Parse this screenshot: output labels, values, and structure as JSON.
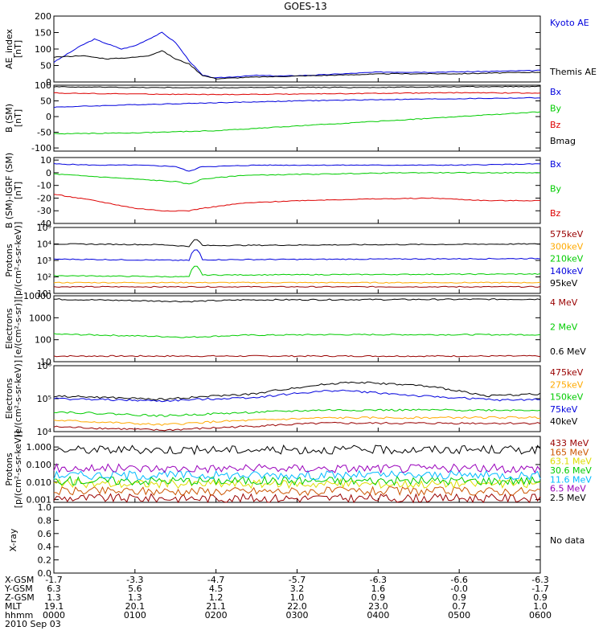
{
  "title": "GOES-13",
  "colors": {
    "black": "#000000",
    "blue": "#0000dd",
    "green": "#00cc00",
    "red": "#dd0000",
    "darkred": "#990000",
    "orange": "#ffaa00",
    "yellow": "#dddd00",
    "cyan": "#00bbff",
    "purple": "#9900bb",
    "brown": "#cc5500"
  },
  "chart_data": [
    {
      "type": "line",
      "ylabel": [
        "AE_index",
        "[nT]"
      ],
      "ylim": [
        0,
        200
      ],
      "yticks": [
        "200",
        "150",
        "100",
        "50",
        "0"
      ],
      "series": [
        {
          "name": "Kyoto AE",
          "color": "blue",
          "x": [
            0,
            10,
            20,
            30,
            40,
            50,
            60,
            70,
            80,
            90,
            100,
            110,
            120,
            130,
            150,
            170,
            200,
            240,
            280,
            320,
            360
          ],
          "y": [
            60,
            85,
            110,
            130,
            115,
            100,
            110,
            130,
            150,
            120,
            65,
            20,
            12,
            15,
            20,
            18,
            22,
            30,
            30,
            32,
            35
          ]
        },
        {
          "name": "Themis AE",
          "color": "black",
          "x": [
            0,
            20,
            40,
            60,
            70,
            80,
            90,
            100,
            110,
            120,
            150,
            200,
            250,
            300,
            360
          ],
          "y": [
            75,
            80,
            70,
            75,
            80,
            95,
            70,
            55,
            20,
            10,
            15,
            20,
            25,
            25,
            30
          ]
        }
      ]
    },
    {
      "type": "line",
      "ylabel": [
        "B (SM)",
        "[nT]"
      ],
      "ylim": [
        -110,
        100
      ],
      "yticks": [
        "100",
        "50",
        "0",
        "-50",
        "-100"
      ],
      "series": [
        {
          "name": "Bx",
          "color": "blue",
          "x": [
            0,
            60,
            120,
            180,
            240,
            300,
            360
          ],
          "y": [
            30,
            38,
            44,
            50,
            54,
            57,
            60
          ]
        },
        {
          "name": "By",
          "color": "green",
          "x": [
            0,
            60,
            120,
            180,
            240,
            300,
            360
          ],
          "y": [
            -55,
            -52,
            -45,
            -30,
            -15,
            0,
            15
          ]
        },
        {
          "name": "Bz",
          "color": "red",
          "x": [
            0,
            60,
            120,
            180,
            240,
            300,
            360
          ],
          "y": [
            75,
            72,
            70,
            72,
            74,
            76,
            75
          ]
        },
        {
          "name": "Bmag",
          "color": "black",
          "x": [
            0,
            60,
            120,
            180,
            240,
            300,
            360
          ],
          "y": [
            95,
            93,
            92,
            93,
            93,
            95,
            96
          ]
        }
      ]
    },
    {
      "type": "line",
      "ylabel": [
        "B (SM)-IGRF (SM)",
        "[nT]"
      ],
      "ylim": [
        -40,
        12
      ],
      "yticks": [
        "10",
        "0",
        "-10",
        "-20",
        "-30",
        "-40"
      ],
      "series": [
        {
          "name": "Bx",
          "color": "blue",
          "x": [
            0,
            30,
            60,
            90,
            100,
            110,
            120,
            150,
            200,
            250,
            300,
            360
          ],
          "y": [
            7,
            6,
            6,
            5,
            1,
            5,
            5,
            6,
            6,
            6,
            6,
            7
          ]
        },
        {
          "name": "By",
          "color": "green",
          "x": [
            0,
            30,
            60,
            90,
            100,
            110,
            140,
            200,
            260,
            300,
            360
          ],
          "y": [
            -1,
            -3,
            -5,
            -7,
            -9,
            -5,
            -2,
            -1,
            0,
            0,
            0
          ]
        },
        {
          "name": "Bz",
          "color": "red",
          "x": [
            0,
            30,
            60,
            80,
            100,
            110,
            140,
            180,
            220,
            280,
            320,
            360
          ],
          "y": [
            -17,
            -22,
            -28,
            -30,
            -30,
            -28,
            -24,
            -22,
            -21,
            -20,
            -22,
            -22
          ]
        }
      ]
    },
    {
      "type": "line",
      "log": true,
      "ylabel": [
        "Protons",
        "[p/(cm²-s-sr-keV)]"
      ],
      "ylim": [
        10,
        100000
      ],
      "yticks": [
        "10⁵",
        "10⁴",
        "10³",
        "10²",
        "10¹"
      ],
      "series": [
        {
          "name": "575keV",
          "color": "darkred",
          "x": [
            0,
            360
          ],
          "y": [
            25,
            25
          ]
        },
        {
          "name": "300keV",
          "color": "orange",
          "x": [
            0,
            360
          ],
          "y": [
            45,
            45
          ]
        },
        {
          "name": "210keV",
          "color": "green",
          "x": [
            0,
            100,
            105,
            110,
            360
          ],
          "y": [
            120,
            100,
            500,
            130,
            150
          ]
        },
        {
          "name": "140keV",
          "color": "blue",
          "x": [
            0,
            100,
            105,
            110,
            360
          ],
          "y": [
            1200,
            1000,
            5000,
            1100,
            1300
          ]
        },
        {
          "name": "95keV",
          "color": "black",
          "x": [
            0,
            80,
            100,
            105,
            110,
            360
          ],
          "y": [
            10000,
            9000,
            7000,
            20000,
            8000,
            10000
          ]
        }
      ]
    },
    {
      "type": "line",
      "log": true,
      "ylabel": [
        "Electrons",
        "[e/(cm²-s-sr)]"
      ],
      "ylim": [
        10,
        10000
      ],
      "yticks": [
        "10000",
        "1000",
        "100",
        "10"
      ],
      "series": [
        {
          "name": "4 MeV",
          "color": "darkred",
          "x": [
            0,
            360
          ],
          "y": [
            18,
            18
          ]
        },
        {
          "name": "2 MeV",
          "color": "green",
          "x": [
            0,
            60,
            100,
            140,
            200,
            360
          ],
          "y": [
            180,
            150,
            130,
            160,
            170,
            170
          ]
        },
        {
          "name": "0.6 MeV",
          "color": "black",
          "x": [
            0,
            60,
            100,
            140,
            360
          ],
          "y": [
            7000,
            6000,
            5500,
            6500,
            7000
          ]
        }
      ]
    },
    {
      "type": "line",
      "log": true,
      "ylabel": [
        "Electrons",
        "[e/(cm²-s-sr-keV)]"
      ],
      "ylim": [
        10000,
        1000000
      ],
      "yticks": [
        "10⁶",
        "10⁵",
        "10⁴"
      ],
      "series": [
        {
          "name": "475keV",
          "color": "darkred",
          "x": [
            0,
            80,
            120,
            200,
            360
          ],
          "y": [
            14000,
            11000,
            13000,
            18000,
            18000
          ]
        },
        {
          "name": "275keV",
          "color": "orange",
          "x": [
            0,
            80,
            120,
            200,
            360
          ],
          "y": [
            22000,
            16000,
            20000,
            26000,
            27000
          ]
        },
        {
          "name": "150keV",
          "color": "green",
          "x": [
            0,
            80,
            120,
            200,
            360
          ],
          "y": [
            40000,
            30000,
            35000,
            45000,
            45000
          ]
        },
        {
          "name": "75keV",
          "color": "blue",
          "x": [
            0,
            80,
            150,
            210,
            270,
            330,
            360
          ],
          "y": [
            100000,
            85000,
            110000,
            180000,
            120000,
            90000,
            95000
          ]
        },
        {
          "name": "40keV",
          "color": "black",
          "x": [
            0,
            80,
            150,
            220,
            270,
            320,
            360
          ],
          "y": [
            120000,
            95000,
            140000,
            320000,
            250000,
            120000,
            140000
          ]
        }
      ]
    },
    {
      "type": "line",
      "log": true,
      "ylabel": [
        "Protons",
        "[p/(cm²-s-sr-keV)]"
      ],
      "ylim": [
        0.0007,
        4
      ],
      "yticks": [
        "1.000",
        "0.100",
        "0.010",
        "0.001"
      ],
      "series": [
        {
          "name": "433 MeV",
          "color": "darkred",
          "x": [
            0,
            360
          ],
          "y": [
            0.0012,
            0.0012
          ]
        },
        {
          "name": "165 MeV",
          "color": "brown",
          "x": [
            0,
            360
          ],
          "y": [
            0.003,
            0.003
          ]
        },
        {
          "name": "63.1 MeV",
          "color": "yellow",
          "x": [
            0,
            360
          ],
          "y": [
            0.008,
            0.008
          ]
        },
        {
          "name": "30.6 MeV",
          "color": "green",
          "x": [
            0,
            360
          ],
          "y": [
            0.012,
            0.012
          ]
        },
        {
          "name": "11.6 MeV",
          "color": "cyan",
          "x": [
            0,
            360
          ],
          "y": [
            0.025,
            0.025
          ]
        },
        {
          "name": "6.5 MeV",
          "color": "purple",
          "x": [
            0,
            360
          ],
          "y": [
            0.06,
            0.06
          ]
        },
        {
          "name": "2.5 MeV",
          "color": "black",
          "x": [
            0,
            360
          ],
          "y": [
            0.7,
            0.7
          ]
        }
      ]
    },
    {
      "type": "line",
      "ylabel": [
        "X-ray"
      ],
      "ylim": [
        0,
        1
      ],
      "yticks": [
        "1.0",
        "0.8",
        "0.6",
        "0.4",
        "0.2",
        "0.0"
      ],
      "note": "No data",
      "series": []
    }
  ],
  "xaxis": {
    "rows": [
      {
        "label": "X-GSM",
        "values": [
          "-1.7",
          "-3.3",
          "-4.7",
          "-5.7",
          "-6.3",
          "-6.6",
          "-6.3"
        ]
      },
      {
        "label": "Y-GSM",
        "values": [
          "6.3",
          "5.6",
          "4.5",
          "3.2",
          "1.6",
          "-0.0",
          "-1.7"
        ]
      },
      {
        "label": "Z-GSM",
        "values": [
          "1.3",
          "1.3",
          "1.2",
          "1.0",
          "0.9",
          "0.9",
          "0.9"
        ]
      },
      {
        "label": "MLT",
        "values": [
          "19.1",
          "20.1",
          "21.1",
          "22.0",
          "23.0",
          "0.7",
          "1.0"
        ]
      },
      {
        "label": "hhmm",
        "values": [
          "0000",
          "0100",
          "0200",
          "0300",
          "0400",
          "0500",
          "0600"
        ]
      }
    ],
    "date": "2010 Sep 03",
    "xlim": [
      0,
      360
    ]
  }
}
